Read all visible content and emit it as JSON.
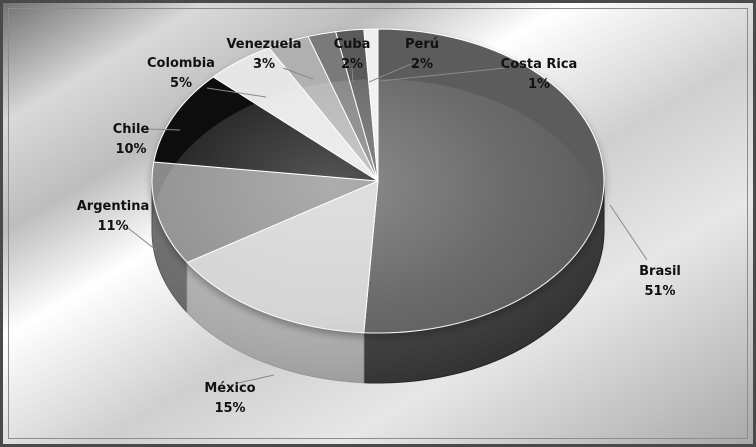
{
  "chart_data": {
    "type": "pie",
    "title": "",
    "categories": [
      "Brasil",
      "México",
      "Argentina",
      "Chile",
      "Colombia",
      "Venezuela",
      "Cuba",
      "Perú",
      "Costa Rica"
    ],
    "values": [
      51,
      15,
      11,
      10,
      5,
      3,
      2,
      2,
      1
    ],
    "value_labels": [
      "51%",
      "15%",
      "11%",
      "10%",
      "5%",
      "3%",
      "2%",
      "2%",
      "1%"
    ],
    "colors": [
      "#5c5c5c",
      "#d2d2d2",
      "#8a8a8a",
      "#111111",
      "#e6e6e6",
      "#b0b0b0",
      "#7a7a7a",
      "#5a5a5a",
      "#efefef"
    ],
    "legend": "none",
    "grid": false,
    "style": "3d-pie",
    "background": "silver-gradient-frame"
  }
}
